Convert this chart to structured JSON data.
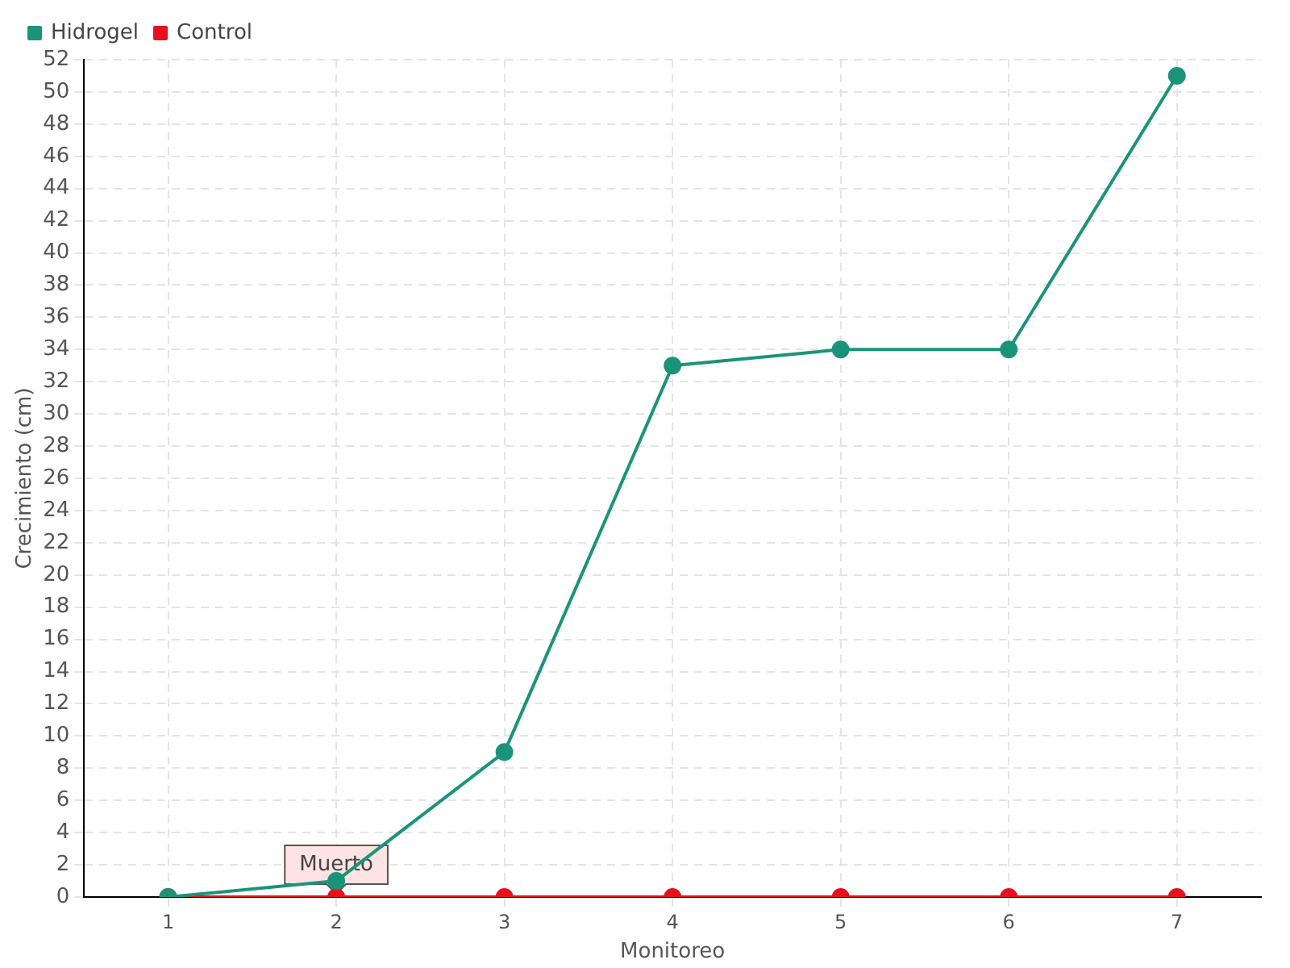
{
  "chart_data": {
    "type": "line",
    "xlabel": "Monitoreo",
    "ylabel": "Crecimiento (cm)",
    "categories": [
      "1",
      "2",
      "3",
      "4",
      "5",
      "6",
      "7"
    ],
    "series": [
      {
        "name": "Hidrogel",
        "color": "#1a9478",
        "values": [
          0,
          1,
          9,
          33,
          34,
          34,
          51
        ]
      },
      {
        "name": "Control",
        "color": "#e8101e",
        "values": [
          0,
          0,
          0,
          0,
          0,
          0,
          0
        ]
      }
    ],
    "ylim": [
      0,
      52
    ],
    "yticks": [
      0,
      2,
      4,
      6,
      8,
      10,
      12,
      14,
      16,
      18,
      20,
      22,
      24,
      26,
      28,
      30,
      32,
      34,
      36,
      38,
      40,
      42,
      44,
      46,
      48,
      50,
      52
    ],
    "grid": true,
    "legend": "top left",
    "marker": "circle",
    "line_style": "solid",
    "annotations": [
      {
        "text": "Muerto",
        "x": "2",
        "y": 0
      }
    ]
  }
}
